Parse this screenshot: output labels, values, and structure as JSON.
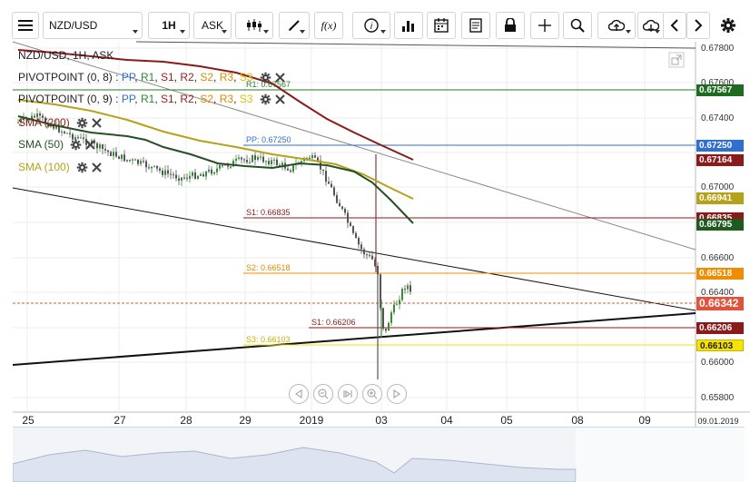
{
  "toolbar": {
    "symbol": "NZD/USD",
    "timeframe": "1H",
    "price_side": "ASK",
    "fx_label": "f(x)"
  },
  "legend": {
    "header": "NZD/USD, 1H, ASK",
    "pivot1": "PIVOTPOINT (0, 8)",
    "pivot2": "PIVOTPOINT (0, 9)",
    "levels_sep": ": ",
    "levels": [
      "PP",
      "R1",
      "S1",
      "R2",
      "S2",
      "R3",
      "S3"
    ],
    "sma200": "SMA (200)",
    "sma50": "SMA (50)",
    "sma100": "SMA (100)"
  },
  "chart": {
    "annotations": {
      "r1": "R1: 0.67567",
      "pp": "PP: 0.67250",
      "s1_prev": "S1: 0.66835",
      "s2": "S2: 0.66518",
      "s1": "S1: 0.66206",
      "s3": "S3: 0.66103"
    },
    "axis_ticks": [
      "0.67800",
      "0.67600",
      "0.67400",
      "0.67000",
      "0.66600",
      "0.66400",
      "0.66000",
      "0.65800"
    ],
    "price_tags": [
      {
        "label": "0.67567",
        "color": "#1f6b1f"
      },
      {
        "label": "0.67250",
        "color": "#2f6fd0"
      },
      {
        "label": "0.67164",
        "color": "#8b1a1a"
      },
      {
        "label": "0.66941",
        "color": "#b5a21a"
      },
      {
        "label": "0.66835",
        "color": "#8b1a1a"
      },
      {
        "label": "0.66795",
        "color": "#1f5a1f"
      },
      {
        "label": "0.66518",
        "color": "#f08c00"
      },
      {
        "label": "0.66342",
        "color": "#e0533a"
      },
      {
        "label": "0.66206",
        "color": "#8b1a1a"
      },
      {
        "label": "0.66103",
        "color": "#f5e400"
      }
    ],
    "dates": [
      "25",
      "27",
      "28",
      "29",
      "2019",
      "03",
      "04",
      "05",
      "08",
      "09",
      "09.01.2019"
    ]
  }
}
